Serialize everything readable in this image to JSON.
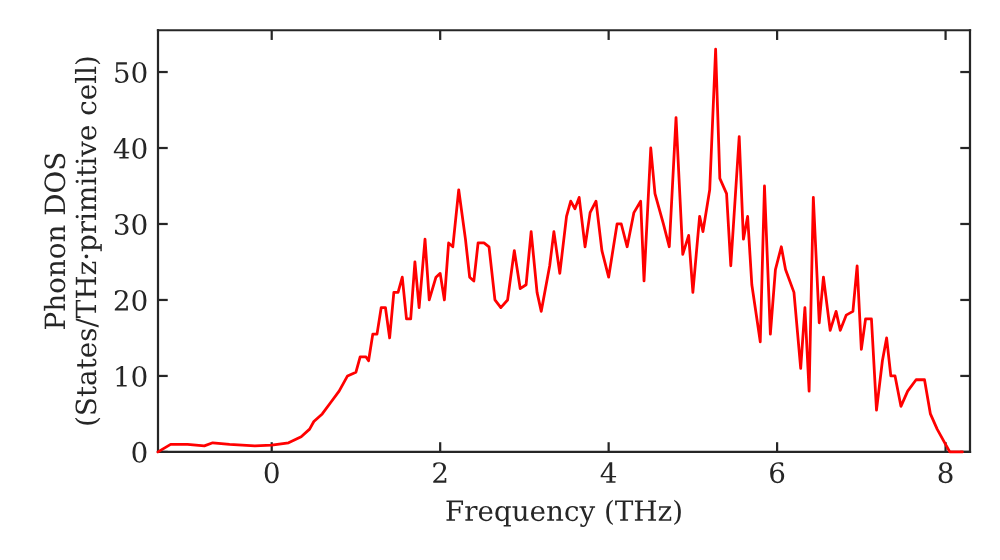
{
  "chart_data": {
    "type": "line",
    "xlabel": "Frequency (THz)",
    "ylabel": "Phonon DOS\n(States/THz·primitive cell)",
    "xlim": [
      -1.35,
      8.29
    ],
    "ylim": [
      0,
      55.5
    ],
    "xticks": [
      0,
      2,
      4,
      6,
      8
    ],
    "yticks": [
      0,
      10,
      20,
      30,
      40,
      50
    ],
    "grid": false,
    "legend": false,
    "marker": "none",
    "line_style": "solid",
    "x": [
      -1.35,
      -1.2,
      -1.0,
      -0.8,
      -0.7,
      -0.5,
      -0.2,
      0,
      0.2,
      0.35,
      0.45,
      0.5,
      0.6,
      0.7,
      0.8,
      0.9,
      1.0,
      1.05,
      1.12,
      1.15,
      1.2,
      1.25,
      1.3,
      1.35,
      1.4,
      1.45,
      1.5,
      1.55,
      1.6,
      1.65,
      1.7,
      1.75,
      1.82,
      1.87,
      1.95,
      2.0,
      2.05,
      2.1,
      2.15,
      2.22,
      2.3,
      2.35,
      2.4,
      2.45,
      2.52,
      2.58,
      2.65,
      2.72,
      2.8,
      2.88,
      2.95,
      3.02,
      3.08,
      3.15,
      3.2,
      3.3,
      3.35,
      3.42,
      3.5,
      3.55,
      3.6,
      3.65,
      3.72,
      3.78,
      3.85,
      3.92,
      4.0,
      4.1,
      4.15,
      4.22,
      4.3,
      4.38,
      4.42,
      4.5,
      4.55,
      4.65,
      4.72,
      4.8,
      4.88,
      4.95,
      5.0,
      5.08,
      5.12,
      5.2,
      5.27,
      5.32,
      5.4,
      5.45,
      5.55,
      5.6,
      5.65,
      5.7,
      5.8,
      5.85,
      5.92,
      5.98,
      6.05,
      6.1,
      6.2,
      6.28,
      6.33,
      6.38,
      6.43,
      6.5,
      6.55,
      6.63,
      6.7,
      6.75,
      6.82,
      6.9,
      6.95,
      7.0,
      7.05,
      7.12,
      7.18,
      7.25,
      7.3,
      7.35,
      7.4,
      7.47,
      7.55,
      7.65,
      7.75,
      7.82,
      7.9,
      8.0,
      8.05,
      8.2
    ],
    "series": [
      {
        "color": "#ff0000",
        "values": [
          0,
          1,
          1,
          0.8,
          1.2,
          1,
          0.8,
          0.9,
          1.2,
          2,
          3,
          4,
          5,
          6.5,
          8,
          10,
          10.5,
          12.5,
          12.5,
          12,
          15.5,
          15.5,
          19,
          19,
          15,
          21,
          21,
          23,
          17.5,
          17.5,
          25,
          19,
          28,
          20,
          23,
          23.5,
          20,
          27.5,
          27,
          34.5,
          28,
          23,
          22.5,
          27.5,
          27.5,
          27,
          20,
          19,
          20,
          26.5,
          21.5,
          22,
          29,
          21,
          18.5,
          24.5,
          29,
          23.5,
          31,
          33,
          32,
          33.5,
          27,
          31.5,
          33,
          26.5,
          23,
          30,
          30,
          27,
          31.5,
          33,
          22.5,
          40,
          34,
          30,
          27,
          44,
          26,
          28.5,
          21,
          31,
          29,
          34.5,
          53,
          36,
          34,
          24.5,
          41.5,
          28,
          31,
          22,
          14.5,
          35,
          15.5,
          24,
          27,
          24,
          21,
          11,
          19,
          8,
          33.5,
          17,
          23,
          16,
          18.5,
          16,
          18,
          18.5,
          24.5,
          13.5,
          17.5,
          17.5,
          5.5,
          12,
          15,
          10,
          10,
          6,
          8,
          9.5,
          9.5,
          5,
          3,
          1,
          0,
          0
        ]
      }
    ]
  }
}
